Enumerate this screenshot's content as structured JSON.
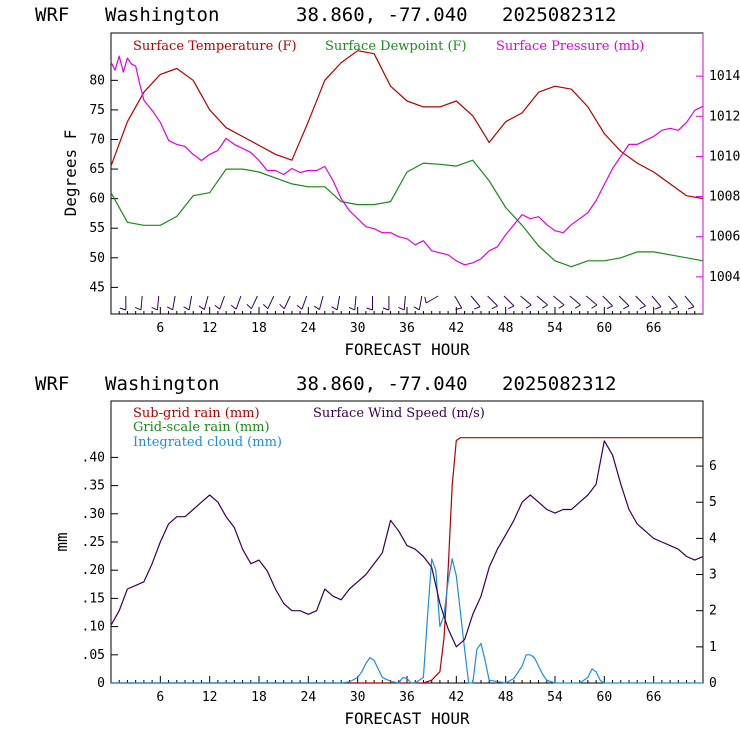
{
  "panels": [
    {
      "header": {
        "model": "WRF",
        "location": "Washington",
        "coords": "38.860, -77.040",
        "run": "2025082312"
      },
      "xlabel": "FORECAST HOUR",
      "ylabel_left": "Degrees F",
      "legend": [
        {
          "label": "Surface Temperature (F)",
          "color": "#b30000"
        },
        {
          "label": "Surface Dewpoint (F)",
          "color": "#1a8a1a"
        },
        {
          "label": "Surface Pressure (mb)",
          "color": "#e000e0"
        }
      ]
    },
    {
      "header": {
        "model": "WRF",
        "location": "Washington",
        "coords": "38.860, -77.040",
        "run": "2025082312"
      },
      "xlabel": "FORECAST HOUR",
      "ylabel_left": "mm",
      "legend": [
        {
          "label": "Sub-grid rain (mm)",
          "color": "#b30000"
        },
        {
          "label": "Grid-scale rain (mm)",
          "color": "#1a8a1a"
        },
        {
          "label": "Integrated cloud (mm)",
          "color": "#1e8fd6"
        },
        {
          "label": "Surface Wind Speed (m/s)",
          "color": "#3a0050"
        }
      ]
    }
  ],
  "chart_data": [
    {
      "type": "line",
      "x_ticks": [
        "6",
        "12",
        "18",
        "24",
        "30",
        "36",
        "42",
        "48",
        "54",
        "60",
        "66"
      ],
      "xlim": [
        0,
        72
      ],
      "y_left_ticks": [
        "45",
        "50",
        "55",
        "60",
        "65",
        "70",
        "75",
        "80"
      ],
      "ylim_left": [
        40.5,
        88
      ],
      "y_right_ticks": [
        "1004",
        "1006",
        "1008",
        "1010",
        "1012",
        "1014"
      ],
      "ylim_right": [
        1002.15,
        1016.15
      ],
      "axis_colors": {
        "left": "#000000",
        "right": "#e000e0"
      },
      "series": [
        {
          "name": "Surface Temperature (F)",
          "axis": "left",
          "color": "#b30000",
          "x": [
            0,
            2,
            4,
            6,
            8,
            10,
            12,
            14,
            16,
            18,
            20,
            22,
            24,
            26,
            28,
            30,
            32,
            34,
            36,
            38,
            40,
            42,
            44,
            46,
            48,
            50,
            52,
            54,
            56,
            58,
            60,
            62,
            64,
            66,
            68,
            70,
            72
          ],
          "y": [
            65.5,
            73,
            78,
            81,
            82,
            80,
            75,
            72,
            70.5,
            69,
            67.5,
            66.5,
            73,
            80,
            83,
            85,
            84.5,
            79,
            76.5,
            75.5,
            75.5,
            76.5,
            74,
            69.5,
            73,
            74.5,
            78,
            79,
            78.5,
            75.5,
            71,
            68,
            66,
            64.5,
            62.5,
            60.5,
            60
          ]
        },
        {
          "name": "Surface Dewpoint (F)",
          "axis": "left",
          "color": "#1a8a1a",
          "x": [
            0,
            2,
            4,
            6,
            8,
            10,
            12,
            14,
            16,
            18,
            20,
            22,
            24,
            26,
            28,
            30,
            32,
            34,
            36,
            38,
            40,
            42,
            44,
            46,
            48,
            50,
            52,
            54,
            56,
            58,
            60,
            62,
            64,
            66,
            68,
            70,
            72
          ],
          "y": [
            61,
            56,
            55.5,
            55.5,
            57,
            60.5,
            61,
            65,
            65,
            64.5,
            63.5,
            62.5,
            62,
            62,
            59.5,
            59,
            59,
            59.5,
            64.5,
            66,
            65.8,
            65.5,
            66.5,
            63,
            58.5,
            55.5,
            52,
            49.5,
            48.5,
            49.5,
            49.5,
            50,
            51,
            51,
            50.5,
            50,
            49.5
          ]
        },
        {
          "name": "Surface Pressure (mb)",
          "axis": "right",
          "color": "#e000e0",
          "x": [
            0,
            0.5,
            1,
            1.5,
            2,
            2.5,
            3,
            3.5,
            4,
            5,
            6,
            7,
            8,
            9,
            10,
            11,
            12,
            13,
            14,
            15,
            16,
            17,
            18,
            19,
            20,
            21,
            22,
            23,
            24,
            25,
            26,
            27,
            28,
            29,
            30,
            31,
            32,
            33,
            34,
            35,
            36,
            37,
            38,
            39,
            40,
            41,
            42,
            43,
            44,
            45,
            46,
            47,
            48,
            49,
            50,
            51,
            52,
            53,
            54,
            55,
            56,
            57,
            58,
            59,
            60,
            61,
            62,
            63,
            64,
            65,
            66,
            67,
            68,
            69,
            70,
            71,
            72
          ],
          "y": [
            1014.7,
            1014.3,
            1015,
            1014.2,
            1014.9,
            1014.6,
            1014.5,
            1013.6,
            1012.8,
            1012.3,
            1011.7,
            1010.8,
            1010.6,
            1010.5,
            1010.1,
            1009.8,
            1010.1,
            1010.3,
            1010.9,
            1010.6,
            1010.4,
            1010.2,
            1009.8,
            1009.3,
            1009.3,
            1009.1,
            1009.4,
            1009.2,
            1009.3,
            1009.3,
            1009.5,
            1008.8,
            1007.9,
            1007.3,
            1006.9,
            1006.5,
            1006.4,
            1006.2,
            1006.2,
            1006,
            1005.9,
            1005.6,
            1005.8,
            1005.3,
            1005.2,
            1005.1,
            1004.8,
            1004.6,
            1004.7,
            1004.9,
            1005.3,
            1005.5,
            1006.1,
            1006.6,
            1007.1,
            1006.9,
            1007,
            1006.6,
            1006.3,
            1006.2,
            1006.6,
            1006.9,
            1007.2,
            1007.8,
            1008.6,
            1009.4,
            1010,
            1010.6,
            1010.6,
            1010.8,
            1011,
            1011.3,
            1011.4,
            1011.3,
            1011.7,
            1012.3,
            1012.5
          ]
        }
      ],
      "wind_barbs": [
        {
          "x": 1.8,
          "dir": 0
        },
        {
          "x": 3.8,
          "dir": 5
        },
        {
          "x": 5.8,
          "dir": 5
        },
        {
          "x": 7.8,
          "dir": 10
        },
        {
          "x": 9.8,
          "dir": 10
        },
        {
          "x": 11.8,
          "dir": 15
        },
        {
          "x": 13.8,
          "dir": 20
        },
        {
          "x": 15.8,
          "dir": 20
        },
        {
          "x": 17.8,
          "dir": 25
        },
        {
          "x": 19.8,
          "dir": 25
        },
        {
          "x": 21.8,
          "dir": 25
        },
        {
          "x": 23.8,
          "dir": 20
        },
        {
          "x": 25.8,
          "dir": 15
        },
        {
          "x": 27.8,
          "dir": 10
        },
        {
          "x": 29.8,
          "dir": 5
        },
        {
          "x": 31.8,
          "dir": 0
        },
        {
          "x": 33.8,
          "dir": 0
        },
        {
          "x": 35.8,
          "dir": 5
        },
        {
          "x": 37.8,
          "dir": 10
        },
        {
          "x": 39.8,
          "dir": 60
        },
        {
          "x": 41.8,
          "dir": 330
        },
        {
          "x": 43.8,
          "dir": 320
        },
        {
          "x": 45.8,
          "dir": 315
        },
        {
          "x": 47.8,
          "dir": 315
        },
        {
          "x": 49.8,
          "dir": 310
        },
        {
          "x": 51.8,
          "dir": 310
        },
        {
          "x": 53.8,
          "dir": 310
        },
        {
          "x": 55.8,
          "dir": 310
        },
        {
          "x": 57.8,
          "dir": 310
        },
        {
          "x": 59.8,
          "dir": 315
        },
        {
          "x": 61.8,
          "dir": 315
        },
        {
          "x": 63.8,
          "dir": 315
        },
        {
          "x": 65.8,
          "dir": 320
        },
        {
          "x": 67.8,
          "dir": 320
        },
        {
          "x": 69.8,
          "dir": 320
        }
      ]
    },
    {
      "type": "line",
      "x_ticks": [
        "6",
        "12",
        "18",
        "24",
        "30",
        "36",
        "42",
        "48",
        "54",
        "60",
        "66"
      ],
      "xlim": [
        0,
        72
      ],
      "y_left_ticks": [
        "0",
        ".05",
        ".10",
        ".15",
        ".20",
        ".25",
        ".30",
        ".35",
        ".40"
      ],
      "ylim_left": [
        0,
        0.5
      ],
      "y_right_ticks": [
        "0",
        "1",
        "2",
        "3",
        "4",
        "5",
        "6"
      ],
      "ylim_right": [
        0,
        7.8
      ],
      "series": [
        {
          "name": "Sub-grid rain (mm)",
          "axis": "left",
          "color": "#b30000",
          "x": [
            0,
            38,
            39,
            40,
            40.5,
            41,
            41.5,
            42,
            42.5,
            43,
            72
          ],
          "y": [
            0,
            0,
            0.005,
            0.02,
            0.08,
            0.2,
            0.35,
            0.43,
            0.435,
            0.435,
            0.435
          ]
        },
        {
          "name": "Integrated cloud (mm)",
          "axis": "left",
          "color": "#1e8fd6",
          "x": [
            0,
            28,
            29,
            30,
            30.5,
            31,
            31.5,
            32,
            32.5,
            33,
            34,
            35,
            35.5,
            36,
            36.5,
            37,
            38,
            38.5,
            39,
            39.5,
            40,
            40.5,
            41,
            41.5,
            42,
            43,
            43.5,
            44,
            44.5,
            45,
            45.5,
            46,
            48,
            49,
            50,
            50.5,
            51,
            51.5,
            52,
            52.5,
            53,
            54,
            57,
            58,
            58.5,
            59,
            59.5,
            60,
            61,
            72
          ],
          "y": [
            0,
            0,
            0.002,
            0.01,
            0.02,
            0.035,
            0.045,
            0.04,
            0.025,
            0.01,
            0.003,
            0,
            0.01,
            0.008,
            0,
            0,
            0.01,
            0.12,
            0.22,
            0.2,
            0.1,
            0.12,
            0.18,
            0.22,
            0.19,
            0.06,
            0.0,
            0.0,
            0.06,
            0.07,
            0.04,
            0.005,
            0,
            0.008,
            0.03,
            0.05,
            0.05,
            0.045,
            0.03,
            0.015,
            0.005,
            0,
            0,
            0.01,
            0.025,
            0.02,
            0.005,
            0,
            0,
            0
          ]
        },
        {
          "name": "Surface Wind Speed (m/s)",
          "axis": "right",
          "color": "#3a0050",
          "x": [
            0,
            1,
            2,
            3,
            4,
            5,
            6,
            7,
            8,
            9,
            10,
            11,
            12,
            13,
            14,
            15,
            16,
            17,
            18,
            19,
            20,
            21,
            22,
            23,
            24,
            25,
            26,
            27,
            28,
            29,
            30,
            31,
            32,
            33,
            34,
            35,
            36,
            37,
            38,
            39,
            40,
            41,
            42,
            43,
            44,
            45,
            46,
            47,
            48,
            49,
            50,
            51,
            52,
            53,
            54,
            55,
            56,
            57,
            58,
            59,
            60,
            61,
            62,
            63,
            64,
            65,
            66,
            67,
            68,
            69,
            70,
            71,
            72
          ],
          "y": [
            1.6,
            2,
            2.6,
            2.7,
            2.8,
            3.3,
            3.9,
            4.4,
            4.6,
            4.6,
            4.8,
            5,
            5.2,
            5,
            4.6,
            4.3,
            3.7,
            3.3,
            3.4,
            3.1,
            2.6,
            2.2,
            2,
            2,
            1.9,
            2,
            2.6,
            2.4,
            2.3,
            2.6,
            2.8,
            3,
            3.3,
            3.6,
            4.5,
            4.2,
            3.8,
            3.7,
            3.5,
            3.2,
            2.2,
            1.5,
            1,
            1.2,
            1.9,
            2.4,
            3.2,
            3.7,
            4.1,
            4.5,
            5,
            5.2,
            5,
            4.8,
            4.7,
            4.8,
            4.8,
            5,
            5.2,
            5.5,
            6.7,
            6.3,
            5.5,
            4.8,
            4.4,
            4.2,
            4,
            3.9,
            3.8,
            3.7,
            3.5,
            3.4,
            3.5
          ]
        }
      ]
    }
  ]
}
